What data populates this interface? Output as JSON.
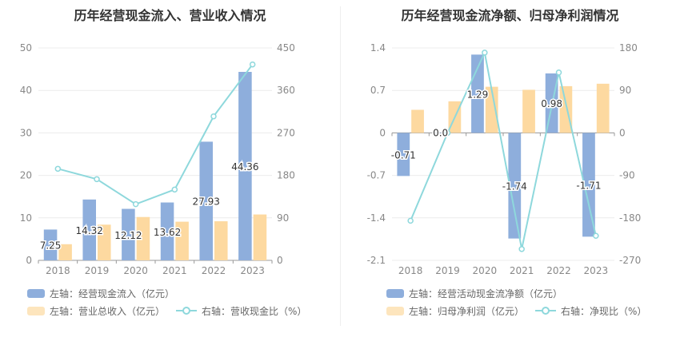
{
  "chart_data": [
    {
      "type": "bar+line",
      "title": "历年经营现金流入、营业收入情况",
      "categories": [
        "2018",
        "2019",
        "2020",
        "2021",
        "2022",
        "2023"
      ],
      "left_axis": {
        "min": 0,
        "max": 50,
        "ticks": [
          "0",
          "10",
          "20",
          "30",
          "40",
          "50"
        ]
      },
      "right_axis": {
        "min": 0,
        "max": 450,
        "ticks": [
          "0",
          "90",
          "180",
          "270",
          "360",
          "450"
        ]
      },
      "series": [
        {
          "name": "左轴：经营现金流入（亿元）",
          "kind": "bar",
          "axis": "left",
          "color": "#8EAEDC",
          "values": [
            7.25,
            14.32,
            12.12,
            13.62,
            27.93,
            44.36
          ],
          "labels": [
            "7.25",
            "14.32",
            "12.12",
            "13.62",
            "27.93",
            "44.36"
          ]
        },
        {
          "name": "左轴：营业总收入（亿元）",
          "kind": "bar",
          "axis": "left",
          "color": "#FDD9A0",
          "values": [
            3.8,
            8.4,
            10.2,
            9.1,
            9.2,
            10.8
          ]
        },
        {
          "name": "右轴：营收现金比（%）",
          "kind": "line",
          "axis": "right",
          "color": "#8ED8DC",
          "values": [
            194,
            172,
            119,
            150,
            305,
            415
          ]
        }
      ]
    },
    {
      "type": "bar+line",
      "title": "历年经营现金流净额、归母净利润情况",
      "categories": [
        "2018",
        "2019",
        "2020",
        "2021",
        "2022",
        "2023"
      ],
      "left_axis": {
        "min": -2.1,
        "max": 1.4,
        "ticks": [
          "-2.1",
          "-1.4",
          "-0.7",
          "0",
          "0.7",
          "1.4"
        ]
      },
      "right_axis": {
        "min": -270,
        "max": 180,
        "ticks": [
          "-270",
          "-180",
          "-90",
          "0",
          "90",
          "180"
        ]
      },
      "series": [
        {
          "name": "左轴：经营活动现金流净额（亿元）",
          "kind": "bar",
          "axis": "left",
          "color": "#8EAEDC",
          "values": [
            -0.71,
            0.0,
            1.29,
            -1.74,
            0.98,
            -1.71
          ],
          "labels": [
            "-0.71",
            "0.0",
            "1.29",
            "-1.74",
            "0.98",
            "-1.71"
          ]
        },
        {
          "name": "左轴：归母净利润（亿元）",
          "kind": "bar",
          "axis": "left",
          "color": "#FDD9A0",
          "values": [
            0.38,
            0.52,
            0.76,
            0.71,
            0.77,
            0.81
          ]
        },
        {
          "name": "右轴：净现比（%）",
          "kind": "line",
          "axis": "right",
          "color": "#8ED8DC",
          "values": [
            -186,
            0,
            170,
            -246,
            128,
            -218
          ]
        }
      ]
    }
  ]
}
